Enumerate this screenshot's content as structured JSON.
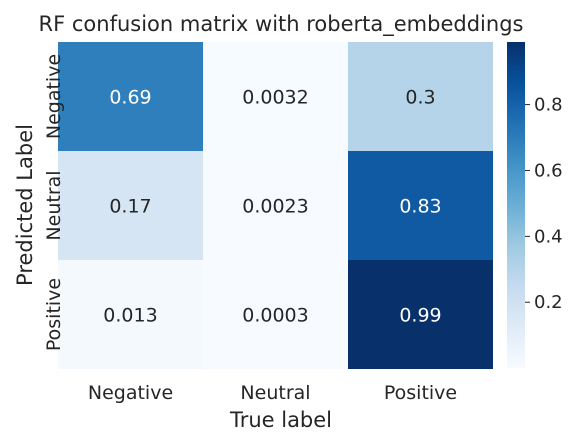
{
  "chart_data": {
    "type": "heatmap",
    "title": "RF confusion matrix with roberta_embeddings",
    "xlabel": "True label",
    "ylabel": "Predicted Label",
    "x_categories": [
      "Negative",
      "Neutral",
      "Positive"
    ],
    "y_categories": [
      "Negative",
      "Neutral",
      "Positive"
    ],
    "values": [
      [
        0.69,
        0.0032,
        0.3
      ],
      [
        0.17,
        0.0023,
        0.83
      ],
      [
        0.013,
        0.0003,
        0.99
      ]
    ],
    "annotations": [
      [
        "0.69",
        "0.0032",
        "0.3"
      ],
      [
        "0.17",
        "0.0023",
        "0.83"
      ],
      [
        "0.013",
        "0.0003",
        "0.99"
      ]
    ],
    "colormap": "Blues",
    "colorbar": {
      "ticks": [
        0.2,
        0.4,
        0.6,
        0.8
      ],
      "tick_labels": [
        "0.2",
        "0.4",
        "0.6",
        "0.8"
      ],
      "range": [
        0.0003,
        0.99
      ]
    }
  }
}
